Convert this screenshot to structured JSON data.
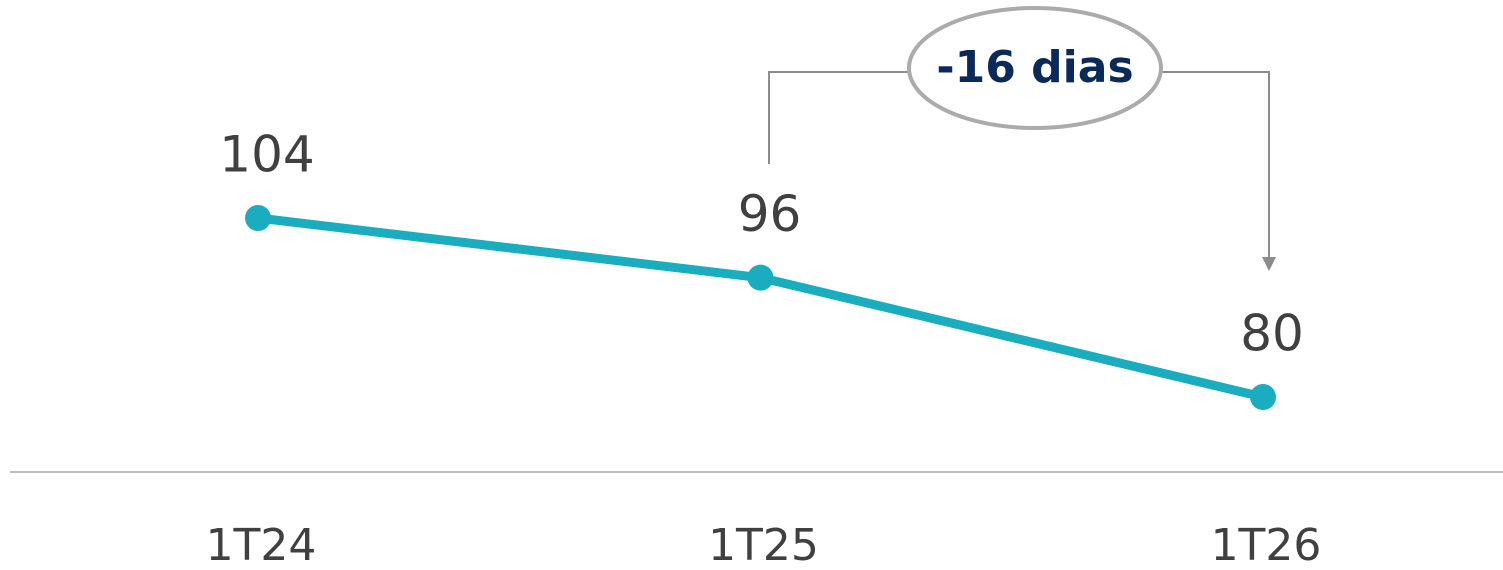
{
  "chart_data": {
    "type": "line",
    "categories": [
      "1T24",
      "1T25",
      "1T26"
    ],
    "values": [
      104,
      96,
      80
    ],
    "color": "#1aacbf",
    "annotation": "-16 dias"
  }
}
